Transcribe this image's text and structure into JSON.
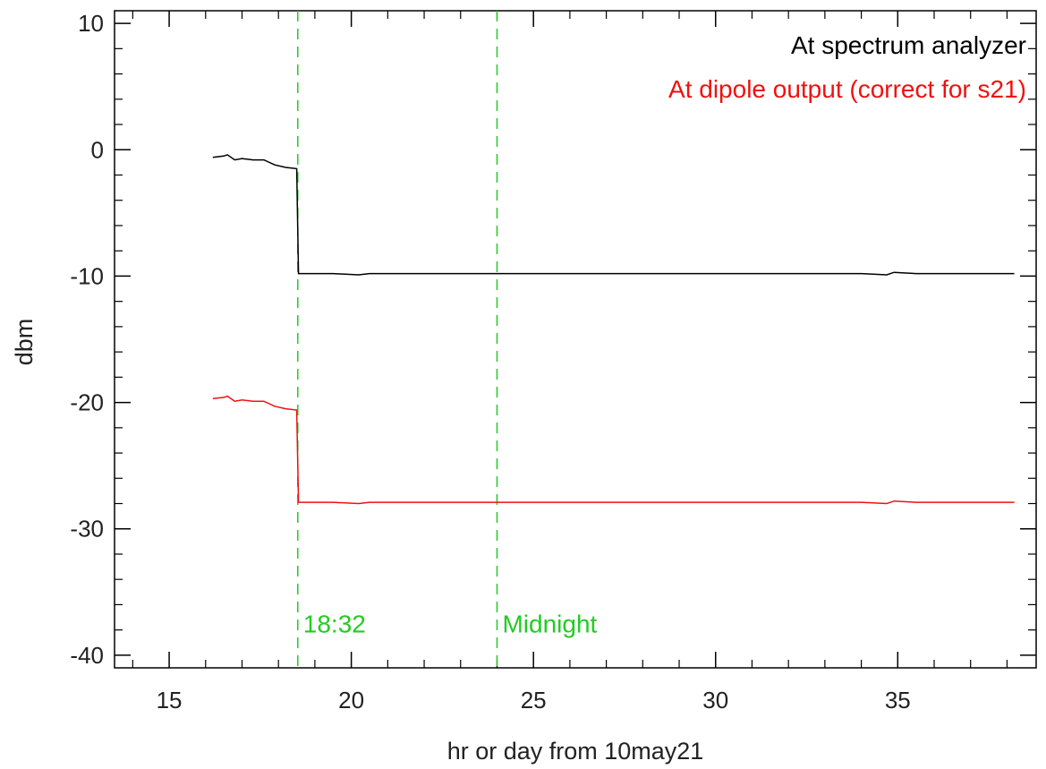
{
  "chart_data": {
    "type": "line",
    "xlabel": "hr or day from 10may21",
    "ylabel": "dbm",
    "xlim": [
      13.5,
      38.8
    ],
    "ylim": [
      -41,
      11
    ],
    "xticks": [
      15,
      20,
      25,
      30,
      35
    ],
    "yticks": [
      10,
      0,
      -10,
      -20,
      -30,
      -40
    ],
    "xtick_labels": [
      "15",
      "20",
      "25",
      "30",
      "35"
    ],
    "ytick_labels": [
      "10",
      "0",
      "-10",
      "-20",
      "-30",
      "-40"
    ],
    "grid": false,
    "legend_position": "top-right",
    "series": [
      {
        "name": "At spectrum analyzer",
        "color": "#000000",
        "x": [
          16.2,
          16.5,
          16.6,
          16.8,
          17.0,
          17.3,
          17.6,
          17.9,
          18.2,
          18.5,
          18.55,
          19.0,
          19.5,
          20.2,
          20.5,
          21.0,
          22.0,
          23.0,
          24.0,
          25.0,
          26.0,
          27.0,
          28.0,
          29.0,
          30.0,
          31.0,
          32.0,
          33.0,
          34.0,
          34.7,
          34.9,
          35.5,
          36.0,
          37.0,
          38.2
        ],
        "y": [
          -0.6,
          -0.5,
          -0.4,
          -0.8,
          -0.7,
          -0.8,
          -0.8,
          -1.2,
          -1.4,
          -1.5,
          -9.8,
          -9.8,
          -9.8,
          -9.9,
          -9.8,
          -9.8,
          -9.8,
          -9.8,
          -9.8,
          -9.8,
          -9.8,
          -9.8,
          -9.8,
          -9.8,
          -9.8,
          -9.8,
          -9.8,
          -9.8,
          -9.8,
          -9.9,
          -9.7,
          -9.8,
          -9.8,
          -9.8,
          -9.8
        ]
      },
      {
        "name": "At dipole output (correct for s21)",
        "color": "#ee1111",
        "x": [
          16.2,
          16.5,
          16.6,
          16.8,
          17.0,
          17.3,
          17.6,
          17.9,
          18.2,
          18.5,
          18.55,
          19.0,
          19.5,
          20.2,
          20.5,
          21.0,
          22.0,
          23.0,
          24.0,
          25.0,
          26.0,
          27.0,
          28.0,
          29.0,
          30.0,
          31.0,
          32.0,
          33.0,
          34.0,
          34.7,
          34.9,
          35.5,
          36.0,
          37.0,
          38.2
        ],
        "y": [
          -19.7,
          -19.6,
          -19.5,
          -19.9,
          -19.8,
          -19.9,
          -19.9,
          -20.3,
          -20.5,
          -20.6,
          -27.9,
          -27.9,
          -27.9,
          -28.0,
          -27.9,
          -27.9,
          -27.9,
          -27.9,
          -27.9,
          -27.9,
          -27.9,
          -27.9,
          -27.9,
          -27.9,
          -27.9,
          -27.9,
          -27.9,
          -27.9,
          -27.9,
          -28.0,
          -27.8,
          -27.9,
          -27.9,
          -27.9,
          -27.9
        ]
      }
    ],
    "vlines": [
      {
        "x": 18.53,
        "label": "18:32",
        "color": "#22cc22"
      },
      {
        "x": 24.0,
        "label": "Midnight",
        "color": "#22cc22"
      }
    ]
  }
}
